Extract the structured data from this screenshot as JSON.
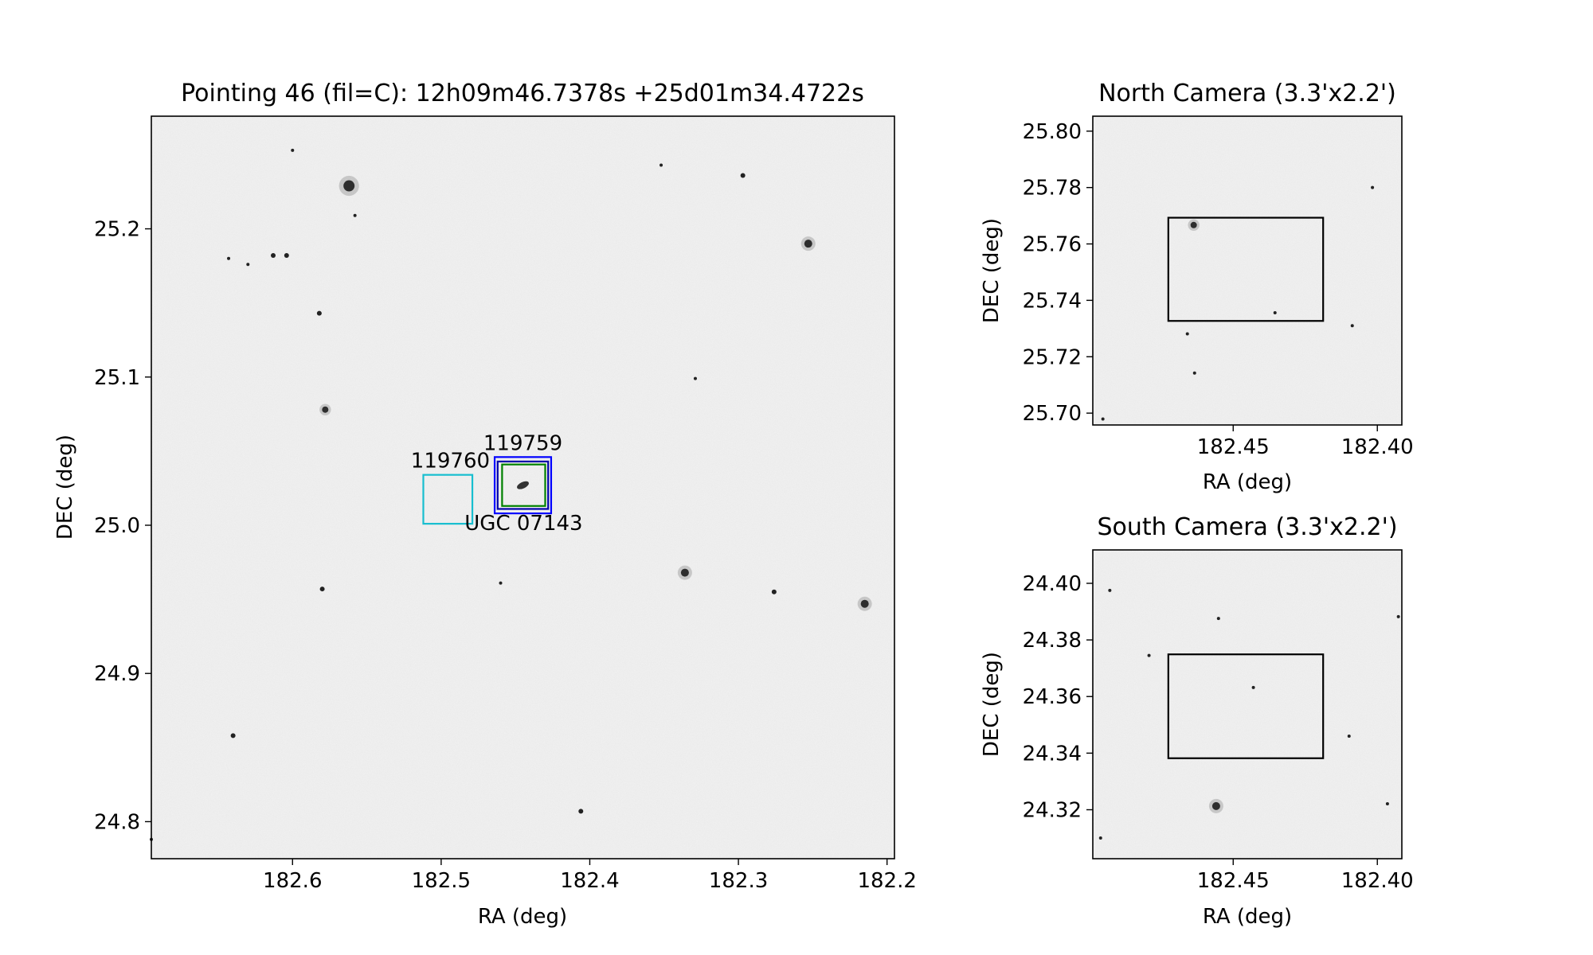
{
  "chart_data": [
    {
      "id": "main",
      "type": "scatter",
      "title": "Pointing 46 (fil=C): 12h09m46.7378s +25d01m34.4722s",
      "xlabel": "RA (deg)",
      "ylabel": "DEC (deg)",
      "xlim": [
        182.695,
        182.195
      ],
      "ylim": [
        24.775,
        25.276
      ],
      "xticks": [
        182.6,
        182.5,
        182.4,
        182.3,
        182.2
      ],
      "xtick_labels": [
        "182.6",
        "182.5",
        "182.4",
        "182.3",
        "182.2"
      ],
      "yticks": [
        24.8,
        24.9,
        25.0,
        25.1,
        25.2
      ],
      "ytick_labels": [
        "24.8",
        "24.9",
        "25.0",
        "25.1",
        "25.2"
      ],
      "grid": false,
      "background": "grayscale sky image",
      "stars": [
        {
          "ra": 182.562,
          "dec": 25.229,
          "s": 7
        },
        {
          "ra": 182.253,
          "dec": 25.19,
          "s": 5
        },
        {
          "ra": 182.578,
          "dec": 25.078,
          "s": 4
        },
        {
          "ra": 182.336,
          "dec": 24.968,
          "s": 5
        },
        {
          "ra": 182.215,
          "dec": 24.947,
          "s": 5
        },
        {
          "ra": 182.276,
          "dec": 24.955,
          "s": 3
        },
        {
          "ra": 182.613,
          "dec": 25.182,
          "s": 3
        },
        {
          "ra": 182.604,
          "dec": 25.182,
          "s": 3
        },
        {
          "ra": 182.582,
          "dec": 25.143,
          "s": 3
        },
        {
          "ra": 182.297,
          "dec": 25.236,
          "s": 3
        },
        {
          "ra": 182.64,
          "dec": 24.858,
          "s": 3
        },
        {
          "ra": 182.406,
          "dec": 24.807,
          "s": 3
        },
        {
          "ra": 182.329,
          "dec": 25.099,
          "s": 2
        },
        {
          "ra": 182.58,
          "dec": 24.957,
          "s": 3
        },
        {
          "ra": 182.46,
          "dec": 24.961,
          "s": 2
        },
        {
          "ra": 182.352,
          "dec": 25.243,
          "s": 2
        },
        {
          "ra": 182.643,
          "dec": 25.18,
          "s": 2
        },
        {
          "ra": 182.6,
          "dec": 25.253,
          "s": 2
        },
        {
          "ra": 182.63,
          "dec": 25.176,
          "s": 2
        },
        {
          "ra": 182.558,
          "dec": 25.209,
          "s": 2
        },
        {
          "ra": 182.695,
          "dec": 24.788,
          "s": 2
        }
      ],
      "boxes": [
        {
          "label": "119760",
          "color": "#17becf",
          "ra_min": 182.479,
          "ra_max": 182.512,
          "dec_min": 25.001,
          "dec_max": 25.034
        },
        {
          "label": "119759",
          "color": "#0000ff",
          "ra_min": 182.426,
          "ra_max": 182.464,
          "dec_min": 25.008,
          "dec_max": 25.046
        },
        {
          "label": "",
          "color": "#0000aa",
          "ra_min": 182.428,
          "ra_max": 182.462,
          "dec_min": 25.011,
          "dec_max": 25.043
        },
        {
          "label": "UGC 07143",
          "color": "#008000",
          "ra_min": 182.43,
          "ra_max": 182.459,
          "dec_min": 25.013,
          "dec_max": 25.041
        }
      ],
      "galaxy": {
        "ra": 182.445,
        "dec": 25.027
      }
    },
    {
      "id": "north",
      "type": "scatter",
      "title": "North Camera (3.3'x2.2')",
      "xlabel": "RA (deg)",
      "ylabel": "DEC (deg)",
      "xlim": [
        182.4987,
        182.3915
      ],
      "ylim": [
        25.6958,
        25.8053
      ],
      "xticks": [
        182.45,
        182.4
      ],
      "xtick_labels": [
        "182.45",
        "182.40"
      ],
      "yticks": [
        25.7,
        25.72,
        25.74,
        25.76,
        25.78,
        25.8
      ],
      "ytick_labels": [
        "25.70",
        "25.72",
        "25.74",
        "25.76",
        "25.78",
        "25.80"
      ],
      "grid": false,
      "background": "grayscale sky image",
      "stars": [
        {
          "ra": 182.4637,
          "dec": 25.7667,
          "s": 4
        },
        {
          "ra": 182.4659,
          "dec": 25.7281,
          "s": 2
        },
        {
          "ra": 182.4634,
          "dec": 25.7142,
          "s": 2
        },
        {
          "ra": 182.4087,
          "dec": 25.731,
          "s": 2
        },
        {
          "ra": 182.4355,
          "dec": 25.7356,
          "s": 2
        },
        {
          "ra": 182.4017,
          "dec": 25.78,
          "s": 2
        },
        {
          "ra": 182.4952,
          "dec": 25.6979,
          "s": 2
        }
      ],
      "boxes": [
        {
          "label": "",
          "color": "#000000",
          "ra_min": 182.4188,
          "ra_max": 182.4725,
          "dec_min": 25.7327,
          "dec_max": 25.7693
        }
      ]
    },
    {
      "id": "south",
      "type": "scatter",
      "title": "South Camera (3.3'x2.2')",
      "xlabel": "RA (deg)",
      "ylabel": "DEC (deg)",
      "xlim": [
        182.4987,
        182.3915
      ],
      "ylim": [
        24.3027,
        24.4118
      ],
      "xticks": [
        182.45,
        182.4
      ],
      "xtick_labels": [
        "182.45",
        "182.40"
      ],
      "yticks": [
        24.32,
        24.34,
        24.36,
        24.38,
        24.4
      ],
      "ytick_labels": [
        "24.32",
        "24.34",
        "24.36",
        "24.38",
        "24.40"
      ],
      "grid": false,
      "background": "grayscale sky image",
      "stars": [
        {
          "ra": 182.4559,
          "dec": 24.3213,
          "s": 5
        },
        {
          "ra": 182.443,
          "dec": 24.3632,
          "s": 2
        },
        {
          "ra": 182.4551,
          "dec": 24.3876,
          "s": 2
        },
        {
          "ra": 182.4792,
          "dec": 24.3745,
          "s": 2
        },
        {
          "ra": 182.496,
          "dec": 24.31,
          "s": 2
        },
        {
          "ra": 182.3927,
          "dec": 24.3882,
          "s": 2
        },
        {
          "ra": 182.4098,
          "dec": 24.346,
          "s": 2
        },
        {
          "ra": 182.3965,
          "dec": 24.3221,
          "s": 2
        },
        {
          "ra": 182.4928,
          "dec": 24.3975,
          "s": 2
        }
      ],
      "boxes": [
        {
          "label": "",
          "color": "#000000",
          "ra_min": 182.4188,
          "ra_max": 182.4725,
          "dec_min": 24.3382,
          "dec_max": 24.3749
        }
      ]
    }
  ]
}
